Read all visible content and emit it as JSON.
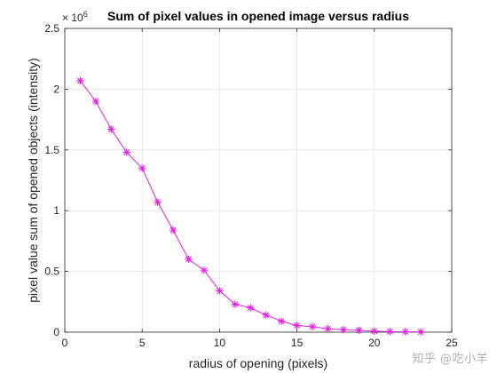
{
  "watermark": "知乎 @吃小羊",
  "chart_data": {
    "type": "line",
    "title": "Sum of pixel values in opened image versus radius",
    "xlabel": "radius of opening (pixels)",
    "ylabel": "pixel value sum of opened objects (intensity)",
    "xlim": [
      0,
      25
    ],
    "ylim": [
      0,
      2.5
    ],
    "y_multiplier_base": "× 10",
    "y_multiplier_exponent": "6",
    "xticks": [
      0,
      5,
      10,
      15,
      20,
      25
    ],
    "xtick_labels": [
      "0",
      "5",
      "10",
      "15",
      "20",
      "25"
    ],
    "yticks": [
      0,
      0.5,
      1,
      1.5,
      2,
      2.5
    ],
    "ytick_labels": [
      "0",
      "0.5",
      "1",
      "1.5",
      "2",
      "2.5"
    ],
    "grid": true,
    "legend": "none",
    "colors": {
      "series": "#e61ee6",
      "grid": "#e6e6e6",
      "axis": "#262626"
    },
    "series": [
      {
        "marker": "asterisk",
        "x": [
          1,
          2,
          3,
          4,
          5,
          6,
          7,
          8,
          9,
          10,
          11,
          12,
          13,
          14,
          15,
          16,
          17,
          18,
          19,
          20,
          21,
          22,
          23
        ],
        "y": [
          2.07,
          1.9,
          1.67,
          1.48,
          1.35,
          1.07,
          0.84,
          0.6,
          0.51,
          0.34,
          0.23,
          0.2,
          0.14,
          0.09,
          0.055,
          0.045,
          0.028,
          0.02,
          0.015,
          0.008,
          0.005,
          0.003,
          0.002
        ]
      }
    ]
  }
}
